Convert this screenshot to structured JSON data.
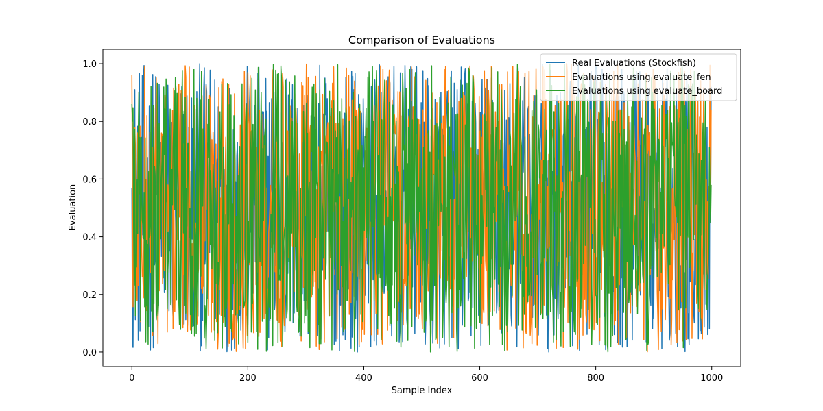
{
  "chart_data": {
    "type": "line",
    "title": "Comparison of Evaluations",
    "xlabel": "Sample Index",
    "ylabel": "Evaluation",
    "xlim": [
      -50,
      1050
    ],
    "ylim": [
      -0.05,
      1.05
    ],
    "xticks": [
      0,
      200,
      400,
      600,
      800,
      1000
    ],
    "yticks": [
      0.0,
      0.2,
      0.4,
      0.6,
      0.8,
      1.0
    ],
    "xtick_labels": [
      "0",
      "200",
      "400",
      "600",
      "800",
      "1000"
    ],
    "ytick_labels": [
      "0.0",
      "0.2",
      "0.4",
      "0.6",
      "0.8",
      "1.0"
    ],
    "grid": false,
    "legend_position": "top-right",
    "n_points": 1000,
    "series_note": "Each series contains 1000 values in [0, 1] that fluctuate rapidly; individual values are not legible in the image.",
    "series": [
      {
        "name": "Real Evaluations (Stockfish)",
        "color": "#1f77b4",
        "first": 0.57,
        "last": 0.92
      },
      {
        "name": "Evaluations using evaluate_fen",
        "color": "#ff7f0e",
        "first": 0.96,
        "last": 0.84
      },
      {
        "name": "Evaluations using evaluate_board",
        "color": "#2ca02c",
        "first": 0.86,
        "last": 0.58
      }
    ]
  }
}
